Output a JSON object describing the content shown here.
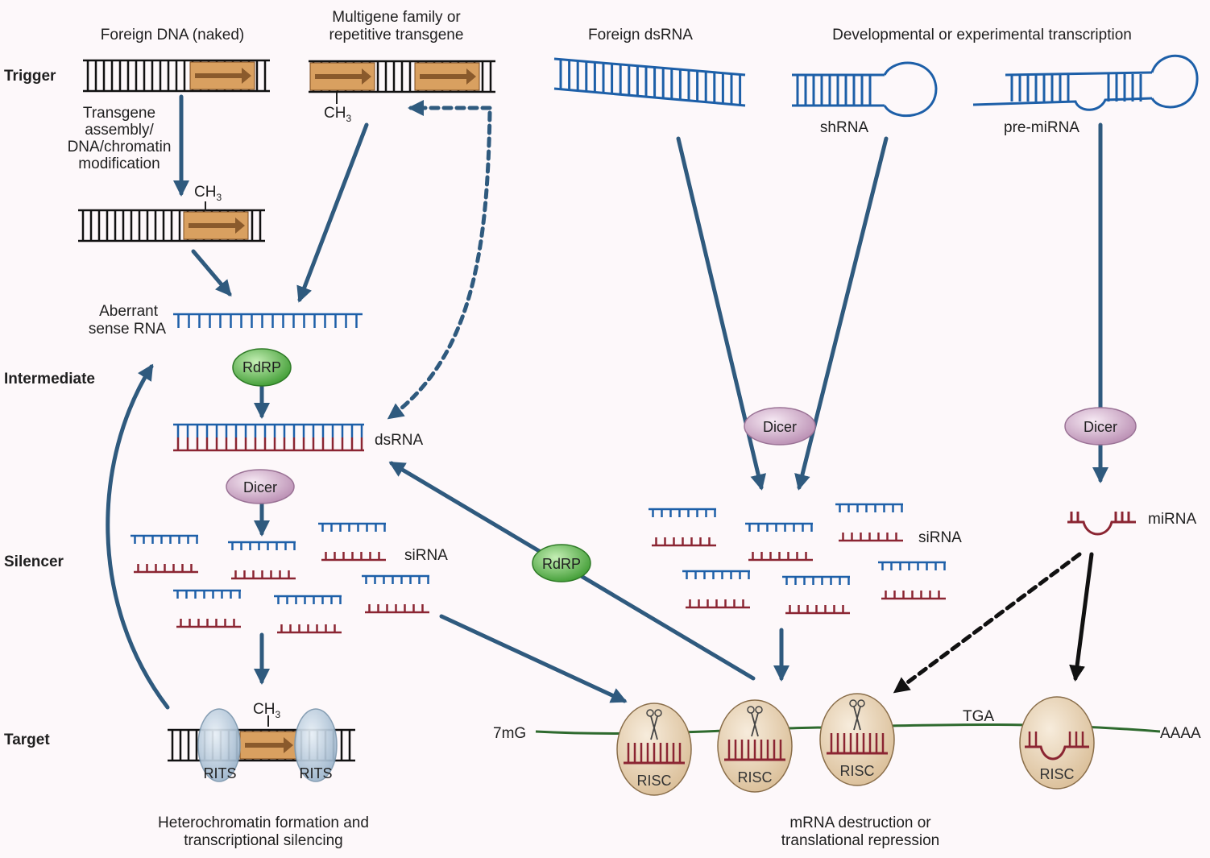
{
  "rows": {
    "trigger": "Trigger",
    "intermediate": "Intermediate",
    "silencer": "Silencer",
    "target": "Target"
  },
  "triggers": {
    "foreign_dna": "Foreign DNA (naked)",
    "multigene_1": "Multigene family or",
    "multigene_2": "repetitive transgene",
    "foreign_dsrna": "Foreign dsRNA",
    "developmental": "Developmental or experimental transcription"
  },
  "labels": {
    "transgene_1": "Transgene",
    "transgene_2": "assembly/",
    "transgene_3": "DNA/chromatin",
    "transgene_4": "modification",
    "methyl": "CH",
    "methyl_sub": "3",
    "aberrant_1": "Aberrant",
    "aberrant_2": "sense RNA",
    "dsrna": "dsRNA",
    "sirna": "siRNA",
    "shrna": "shRNA",
    "pre_mirna": "pre-miRNA",
    "mirna": "miRNA",
    "cap": "7mG",
    "stop": "TGA",
    "polya": "AAAA"
  },
  "enzymes": {
    "rdrp": "RdRP",
    "dicer": "Dicer",
    "rits": "RITS",
    "risc": "RISC"
  },
  "outcomes": {
    "heterochromatin_1": "Heterochromatin formation and",
    "heterochromatin_2": "transcriptional silencing",
    "mrna_1": "mRNA destruction or",
    "mrna_2": "translational repression"
  },
  "colors": {
    "rna_sense": "#1d5fa8",
    "rna_antisense": "#8b2532",
    "mrna": "#2e6a2e",
    "arrow": "#2f5a7e",
    "transgene_box": "#d9a060",
    "rdrp": "#4cae3e",
    "dicer": "#c9a4c4",
    "risc": "#e8d3b6",
    "rits": "#b4c8da"
  }
}
